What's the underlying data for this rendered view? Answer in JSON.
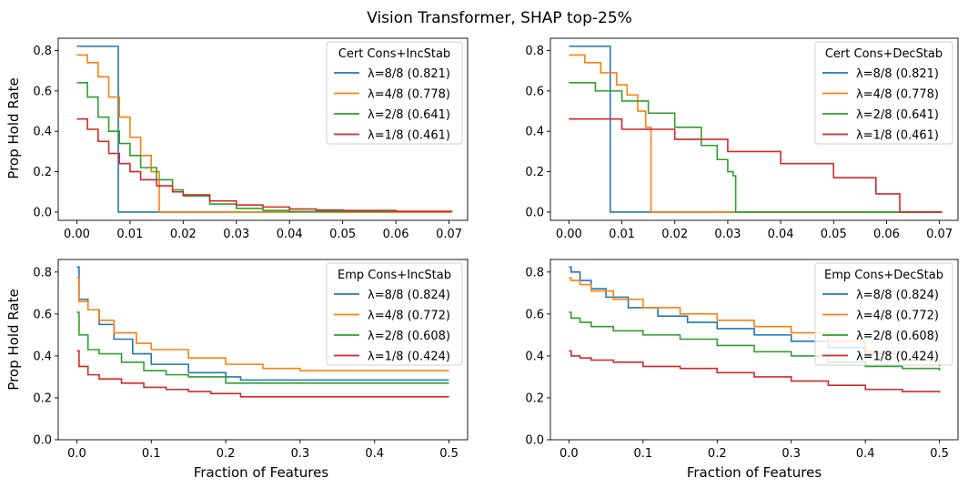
{
  "figure": {
    "title": "Vision Transformer, SHAP top-25%",
    "ylabel": "Prop Hold Rate",
    "xlabel": "Fraction of Features",
    "colors": [
      "#1f77b4",
      "#ff7f0e",
      "#2ca02c",
      "#d62728"
    ]
  },
  "chart_data": [
    {
      "type": "line",
      "legend_title": "Cert Cons+IncStab",
      "legend_position": "top-right",
      "xlim": [
        -0.0035,
        0.0735
      ],
      "ylim": [
        -0.041,
        0.861
      ],
      "xticks": [
        0.0,
        0.01,
        0.02,
        0.03,
        0.04,
        0.05,
        0.06,
        0.07
      ],
      "xtick_labels": [
        "0.00",
        "0.01",
        "0.02",
        "0.03",
        "0.04",
        "0.05",
        "0.06",
        "0.07"
      ],
      "yticks": [
        0.0,
        0.2,
        0.4,
        0.6,
        0.8
      ],
      "ytick_labels": [
        "0.0",
        "0.2",
        "0.4",
        "0.6",
        "0.8"
      ],
      "series": [
        {
          "name": "λ=8/8 (0.821)",
          "color": "#1f77b4",
          "x": [
            0,
            0.0078,
            0.0078,
            0.0705
          ],
          "y": [
            0.821,
            0.821,
            0,
            0
          ]
        },
        {
          "name": "λ=4/8 (0.778)",
          "color": "#ff7f0e",
          "x": [
            0,
            0.002,
            0.004,
            0.006,
            0.008,
            0.01,
            0.012,
            0.014,
            0.0155,
            0.0155,
            0.0705
          ],
          "y": [
            0.778,
            0.74,
            0.67,
            0.57,
            0.47,
            0.37,
            0.28,
            0.2,
            0.14,
            0,
            0
          ]
        },
        {
          "name": "λ=2/8 (0.641)",
          "color": "#2ca02c",
          "x": [
            0,
            0.002,
            0.004,
            0.006,
            0.008,
            0.01,
            0.012,
            0.015,
            0.018,
            0.02,
            0.025,
            0.03,
            0.035,
            0.04,
            0.0705
          ],
          "y": [
            0.641,
            0.57,
            0.47,
            0.4,
            0.34,
            0.28,
            0.22,
            0.16,
            0.11,
            0.08,
            0.04,
            0.018,
            0.008,
            0.003,
            0
          ]
        },
        {
          "name": "λ=1/8 (0.461)",
          "color": "#d62728",
          "x": [
            0,
            0.002,
            0.004,
            0.006,
            0.008,
            0.01,
            0.012,
            0.015,
            0.018,
            0.02,
            0.025,
            0.03,
            0.035,
            0.04,
            0.045,
            0.05,
            0.06,
            0.0705
          ],
          "y": [
            0.461,
            0.41,
            0.35,
            0.29,
            0.24,
            0.2,
            0.16,
            0.13,
            0.1,
            0.085,
            0.055,
            0.035,
            0.025,
            0.015,
            0.01,
            0.008,
            0.004,
            0.002
          ]
        }
      ]
    },
    {
      "type": "line",
      "legend_title": "Cert Cons+DecStab",
      "legend_position": "top-right",
      "xlim": [
        -0.0035,
        0.0735
      ],
      "ylim": [
        -0.041,
        0.861
      ],
      "xticks": [
        0.0,
        0.01,
        0.02,
        0.03,
        0.04,
        0.05,
        0.06,
        0.07
      ],
      "xtick_labels": [
        "0.00",
        "0.01",
        "0.02",
        "0.03",
        "0.04",
        "0.05",
        "0.06",
        "0.07"
      ],
      "yticks": [
        0.0,
        0.2,
        0.4,
        0.6,
        0.8
      ],
      "ytick_labels": [
        "0.0",
        "0.2",
        "0.4",
        "0.6",
        "0.8"
      ],
      "series": [
        {
          "name": "λ=8/8 (0.821)",
          "color": "#1f77b4",
          "x": [
            0,
            0.0078,
            0.0078,
            0.0705
          ],
          "y": [
            0.821,
            0.821,
            0,
            0
          ]
        },
        {
          "name": "λ=4/8 (0.778)",
          "color": "#ff7f0e",
          "x": [
            0,
            0.003,
            0.006,
            0.009,
            0.011,
            0.013,
            0.0145,
            0.0155,
            0.0155,
            0.0705
          ],
          "y": [
            0.778,
            0.74,
            0.69,
            0.63,
            0.58,
            0.5,
            0.42,
            0.36,
            0,
            0
          ]
        },
        {
          "name": "λ=2/8 (0.641)",
          "color": "#2ca02c",
          "x": [
            0,
            0.005,
            0.01,
            0.015,
            0.02,
            0.025,
            0.028,
            0.03,
            0.031,
            0.0315,
            0.0315,
            0.0705
          ],
          "y": [
            0.641,
            0.6,
            0.55,
            0.49,
            0.42,
            0.33,
            0.26,
            0.2,
            0.18,
            0.18,
            0,
            0
          ]
        },
        {
          "name": "λ=1/8 (0.461)",
          "color": "#d62728",
          "x": [
            0,
            0.01,
            0.02,
            0.03,
            0.04,
            0.05,
            0.058,
            0.0625,
            0.0625,
            0.0705
          ],
          "y": [
            0.461,
            0.41,
            0.36,
            0.3,
            0.24,
            0.17,
            0.09,
            0.04,
            0,
            0
          ]
        }
      ]
    },
    {
      "type": "line",
      "legend_title": "Emp Cons+IncStab",
      "legend_position": "top-right",
      "xlim": [
        -0.025,
        0.525
      ],
      "ylim": [
        0,
        0.86
      ],
      "xticks": [
        0.0,
        0.1,
        0.2,
        0.3,
        0.4,
        0.5
      ],
      "xtick_labels": [
        "0.0",
        "0.1",
        "0.2",
        "0.3",
        "0.4",
        "0.5"
      ],
      "yticks": [
        0.0,
        0.2,
        0.4,
        0.6,
        0.8
      ],
      "ytick_labels": [
        "0.0",
        "0.2",
        "0.4",
        "0.6",
        "0.8"
      ],
      "series": [
        {
          "name": "λ=8/8 (0.824)",
          "color": "#1f77b4",
          "x": [
            0,
            0.003,
            0.015,
            0.03,
            0.05,
            0.075,
            0.1,
            0.15,
            0.2,
            0.22,
            0.5
          ],
          "y": [
            0.824,
            0.67,
            0.62,
            0.55,
            0.48,
            0.41,
            0.36,
            0.32,
            0.3,
            0.285,
            0.285
          ]
        },
        {
          "name": "λ=4/8 (0.772)",
          "color": "#ff7f0e",
          "x": [
            0,
            0.003,
            0.015,
            0.03,
            0.05,
            0.08,
            0.1,
            0.15,
            0.2,
            0.25,
            0.3,
            0.5
          ],
          "y": [
            0.772,
            0.66,
            0.62,
            0.57,
            0.51,
            0.46,
            0.43,
            0.39,
            0.36,
            0.34,
            0.33,
            0.33
          ]
        },
        {
          "name": "λ=2/8 (0.608)",
          "color": "#2ca02c",
          "x": [
            0,
            0.003,
            0.015,
            0.03,
            0.06,
            0.09,
            0.12,
            0.15,
            0.2,
            0.5
          ],
          "y": [
            0.608,
            0.5,
            0.43,
            0.41,
            0.37,
            0.33,
            0.31,
            0.3,
            0.27,
            0.27
          ]
        },
        {
          "name": "λ=1/8 (0.424)",
          "color": "#d62728",
          "x": [
            0,
            0.003,
            0.015,
            0.03,
            0.06,
            0.09,
            0.12,
            0.15,
            0.18,
            0.22,
            0.5
          ],
          "y": [
            0.424,
            0.35,
            0.31,
            0.29,
            0.27,
            0.25,
            0.24,
            0.23,
            0.22,
            0.205,
            0.205
          ]
        }
      ]
    },
    {
      "type": "line",
      "legend_title": "Emp Cons+DecStab",
      "legend_position": "top-right",
      "xlim": [
        -0.025,
        0.525
      ],
      "ylim": [
        0,
        0.86
      ],
      "xticks": [
        0.0,
        0.1,
        0.2,
        0.3,
        0.4,
        0.5
      ],
      "xtick_labels": [
        "0.0",
        "0.1",
        "0.2",
        "0.3",
        "0.4",
        "0.5"
      ],
      "yticks": [
        0.0,
        0.2,
        0.4,
        0.6,
        0.8
      ],
      "ytick_labels": [
        "0.0",
        "0.2",
        "0.4",
        "0.6",
        "0.8"
      ],
      "series": [
        {
          "name": "λ=8/8 (0.824)",
          "color": "#1f77b4",
          "x": [
            0,
            0.003,
            0.015,
            0.03,
            0.05,
            0.08,
            0.12,
            0.16,
            0.2,
            0.25,
            0.3,
            0.35,
            0.4,
            0.45,
            0.5
          ],
          "y": [
            0.824,
            0.8,
            0.76,
            0.72,
            0.68,
            0.63,
            0.59,
            0.56,
            0.53,
            0.5,
            0.47,
            0.44,
            0.41,
            0.38,
            0.35
          ]
        },
        {
          "name": "λ=4/8 (0.772)",
          "color": "#ff7f0e",
          "x": [
            0,
            0.003,
            0.015,
            0.03,
            0.06,
            0.1,
            0.15,
            0.2,
            0.25,
            0.3,
            0.35,
            0.4,
            0.45,
            0.5
          ],
          "y": [
            0.772,
            0.76,
            0.74,
            0.71,
            0.67,
            0.63,
            0.6,
            0.57,
            0.54,
            0.51,
            0.47,
            0.42,
            0.38,
            0.36
          ]
        },
        {
          "name": "λ=2/8 (0.608)",
          "color": "#2ca02c",
          "x": [
            0,
            0.003,
            0.015,
            0.03,
            0.06,
            0.1,
            0.15,
            0.2,
            0.25,
            0.3,
            0.35,
            0.4,
            0.45,
            0.5
          ],
          "y": [
            0.608,
            0.58,
            0.56,
            0.54,
            0.52,
            0.5,
            0.48,
            0.45,
            0.42,
            0.4,
            0.37,
            0.35,
            0.34,
            0.33
          ]
        },
        {
          "name": "λ=1/8 (0.424)",
          "color": "#d62728",
          "x": [
            0,
            0.003,
            0.015,
            0.03,
            0.06,
            0.1,
            0.15,
            0.2,
            0.25,
            0.3,
            0.35,
            0.4,
            0.45,
            0.5
          ],
          "y": [
            0.424,
            0.4,
            0.39,
            0.38,
            0.37,
            0.35,
            0.34,
            0.32,
            0.3,
            0.28,
            0.26,
            0.24,
            0.23,
            0.225
          ]
        }
      ]
    }
  ]
}
